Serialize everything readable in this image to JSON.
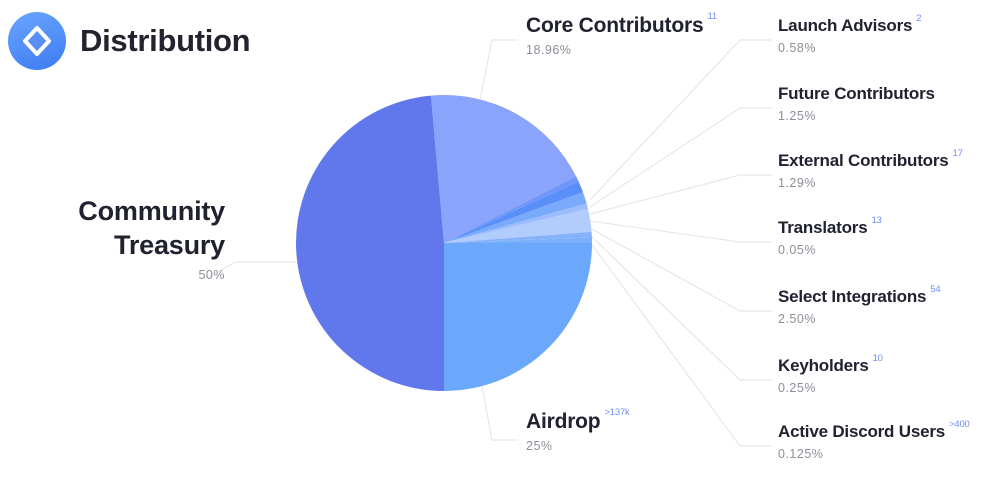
{
  "header": {
    "title": "Distribution",
    "logo_icon": "ens-logo-icon"
  },
  "chart_data": {
    "type": "pie",
    "slices": [
      {
        "label": "Community Treasury",
        "value": 50,
        "pct_text": "50%",
        "note": "",
        "color": "#6178ec"
      },
      {
        "label": "Core Contributors",
        "value": 18.96,
        "pct_text": "18.96%",
        "note": "11",
        "color": "#8aa4fb"
      },
      {
        "label": "Launch Advisors",
        "value": 0.58,
        "pct_text": "0.58%",
        "note": "2",
        "color": "#6f97fb"
      },
      {
        "label": "Future Contributors",
        "value": 1.25,
        "pct_text": "1.25%",
        "note": "",
        "color": "#5a8ef8"
      },
      {
        "label": "External Contributors",
        "value": 1.29,
        "pct_text": "1.29%",
        "note": "17",
        "color": "#7aaafc"
      },
      {
        "label": "Translators",
        "value": 0.05,
        "pct_text": "0.05%",
        "note": "13",
        "color": "#9bbcfd"
      },
      {
        "label": "Select Integrations",
        "value": 2.5,
        "pct_text": "2.50%",
        "note": "54",
        "color": "#b2ccfe"
      },
      {
        "label": "Keyholders",
        "value": 0.25,
        "pct_text": "0.25%",
        "note": "10",
        "color": "#86b2fc"
      },
      {
        "label": "Active Discord Users",
        "value": 0.125,
        "pct_text": "0.125%",
        "note": ">400",
        "color": "#7ab0fb"
      },
      {
        "label": "Airdrop",
        "value": 25,
        "pct_text": "25%",
        "note": ">137k",
        "color": "#6ba8fb"
      }
    ]
  },
  "labels": {
    "community": {
      "line1": "Community",
      "line2": "Treasury",
      "pct": "50%"
    },
    "core": {
      "name": "Core Contributors",
      "note": "11",
      "pct": "18.96%"
    },
    "airdrop": {
      "name": "Airdrop",
      "note": ">137k",
      "pct": "25%"
    },
    "launch": {
      "name": "Launch Advisors",
      "note": "2",
      "pct": "0.58%"
    },
    "future": {
      "name": "Future Contributors",
      "pct": "1.25%"
    },
    "external": {
      "name": "External Contributors",
      "note": "17",
      "pct": "1.29%"
    },
    "translators": {
      "name": "Translators",
      "note": "13",
      "pct": "0.05%"
    },
    "integrations": {
      "name": "Select Integrations",
      "note": "54",
      "pct": "2.50%"
    },
    "keyholders": {
      "name": "Keyholders",
      "note": "10",
      "pct": "0.25%"
    },
    "discord": {
      "name": "Active Discord Users",
      "note": ">400",
      "pct": "0.125%"
    }
  }
}
